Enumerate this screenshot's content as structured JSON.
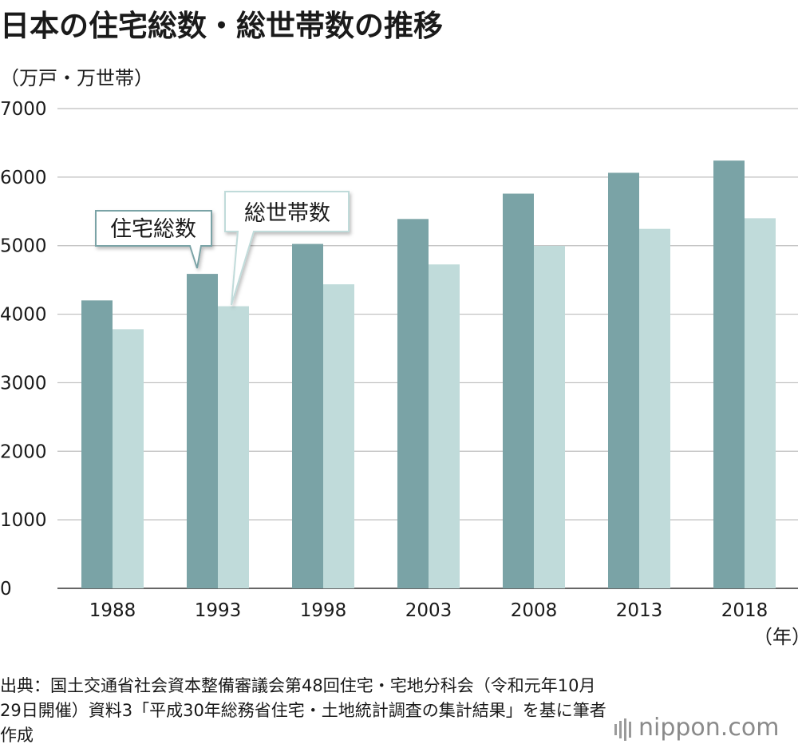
{
  "header": {
    "title": "日本の住宅総数・総世帯数の推移",
    "unit_label": "（万戸・万世帯）"
  },
  "chart_data": {
    "type": "bar",
    "categories": [
      "1988",
      "1993",
      "1998",
      "2003",
      "2008",
      "2013",
      "2018"
    ],
    "series": [
      {
        "name": "住宅総数",
        "color": "#7aa3a6",
        "values": [
          4201,
          4588,
          5025,
          5389,
          5759,
          6063,
          6241
        ]
      },
      {
        "name": "総世帯数",
        "color": "#c0dbda",
        "values": [
          3781,
          4116,
          4436,
          4726,
          4997,
          5245,
          5400
        ]
      }
    ],
    "y_ticks": [
      "0",
      "1000",
      "2000",
      "3000",
      "4000",
      "5000",
      "6000",
      "7000"
    ],
    "ylim": [
      0,
      7000
    ],
    "grid": true,
    "x_unit_label": "（年）"
  },
  "footer": {
    "source": "出典：国土交通省社会資本整備審議会第48回住宅・宅地分科会（令和元年10月29日開催）資料3「平成30年総務省住宅・土地統計調査の集計結果」を基に筆者作成",
    "logo": "nippon.com"
  }
}
